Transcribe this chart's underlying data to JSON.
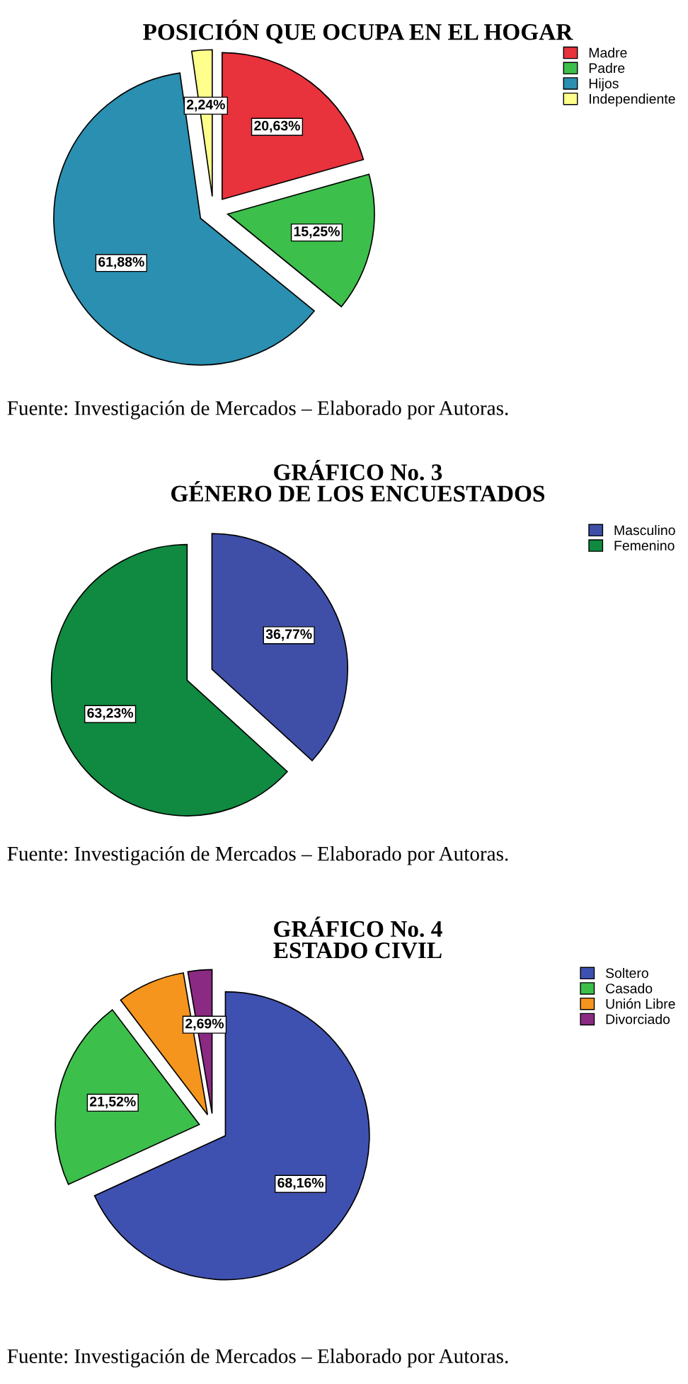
{
  "chart_data": [
    {
      "type": "pie",
      "title": "POSICIÓN QUE OCUPA EN EL HOGAR",
      "categories": [
        "Madre",
        "Padre",
        "Hijos",
        "Independiente"
      ],
      "values": [
        20.63,
        15.25,
        61.88,
        2.24
      ],
      "colors": [
        "#e8323c",
        "#3cbf4b",
        "#2a8fb0",
        "#ffff8c"
      ],
      "value_labels": [
        "20,63%",
        "15,25%",
        "61,88%",
        "2,24%"
      ],
      "legend": "top right",
      "annotations": [
        "Fuente: Investigación de Mercados – Elaborado por Autoras."
      ]
    },
    {
      "type": "pie",
      "title": "GRÁFICO No. 3\nGÉNERO DE LOS ENCUESTADOS",
      "categories": [
        "Masculino",
        "Femenino"
      ],
      "values": [
        36.77,
        63.23
      ],
      "colors": [
        "#3f4fa8",
        "#0f8a40"
      ],
      "value_labels": [
        "36,77%",
        "63,23%"
      ],
      "legend": "top right",
      "annotations": [
        "Fuente: Investigación de Mercados – Elaborado por Autoras."
      ]
    },
    {
      "type": "pie",
      "title": "GRÁFICO No. 4\nESTADO CIVIL",
      "categories": [
        "Soltero",
        "Casado",
        "Unión Libre",
        "Divorciado"
      ],
      "values": [
        68.16,
        21.52,
        7.63,
        2.69
      ],
      "colors": [
        "#3f51b0",
        "#3cbf4b",
        "#f5951d",
        "#8b2a82"
      ],
      "value_labels": [
        "68,16%",
        "21,52%",
        null,
        "2,69%"
      ],
      "legend": "top right",
      "annotations": [
        "Fuente: Investigación de Mercados – Elaborado por Autoras."
      ]
    }
  ]
}
